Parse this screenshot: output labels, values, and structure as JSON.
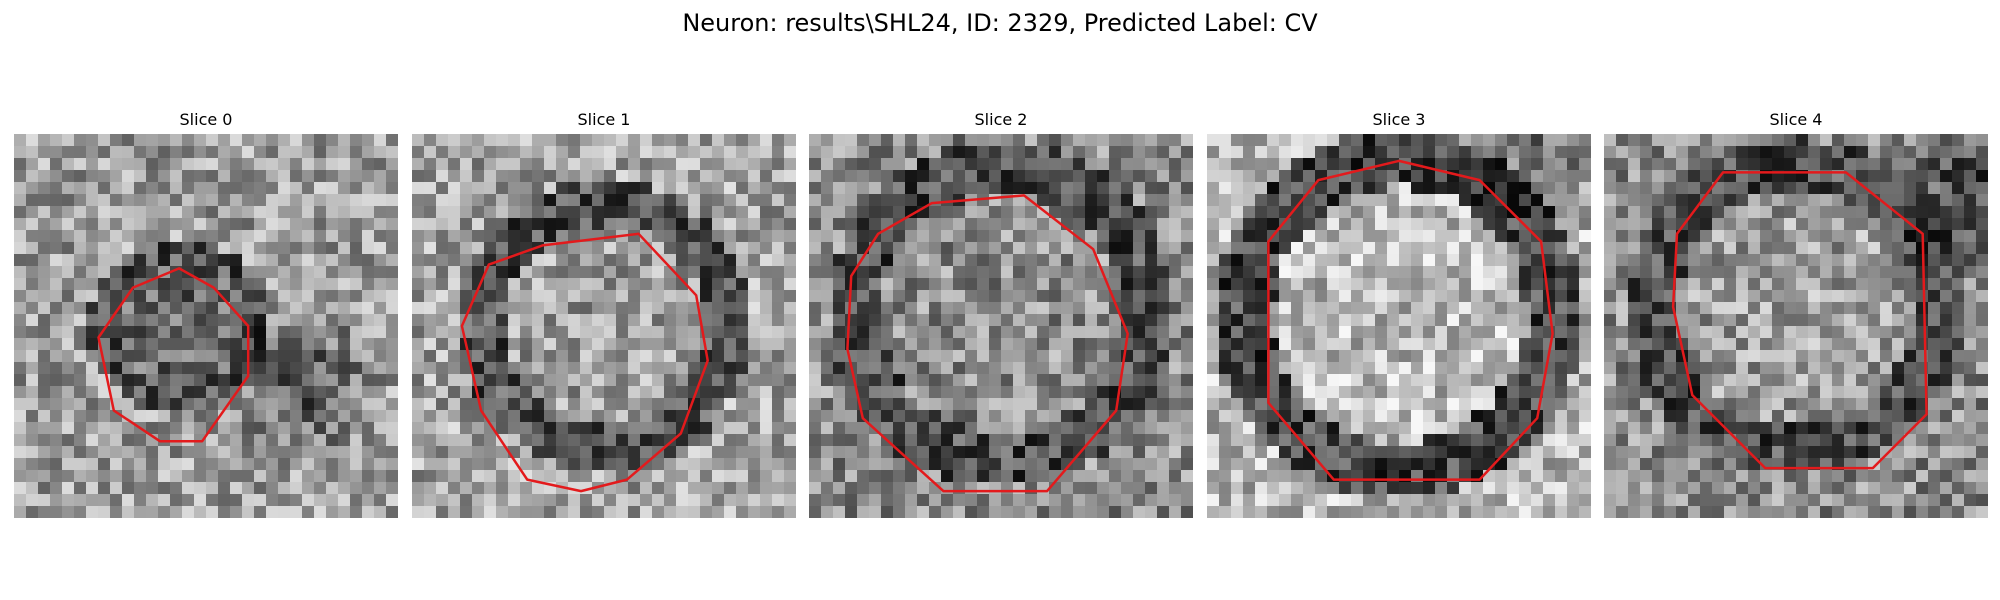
{
  "title": "Neuron: results\\SHL24, ID: 2329, Predicted Label: CV",
  "contour_color": "#e31a1c",
  "slices": [
    {
      "label": "Slice 0"
    },
    {
      "label": "Slice 1"
    },
    {
      "label": "Slice 2"
    },
    {
      "label": "Slice 3"
    },
    {
      "label": "Slice 4"
    }
  ]
}
